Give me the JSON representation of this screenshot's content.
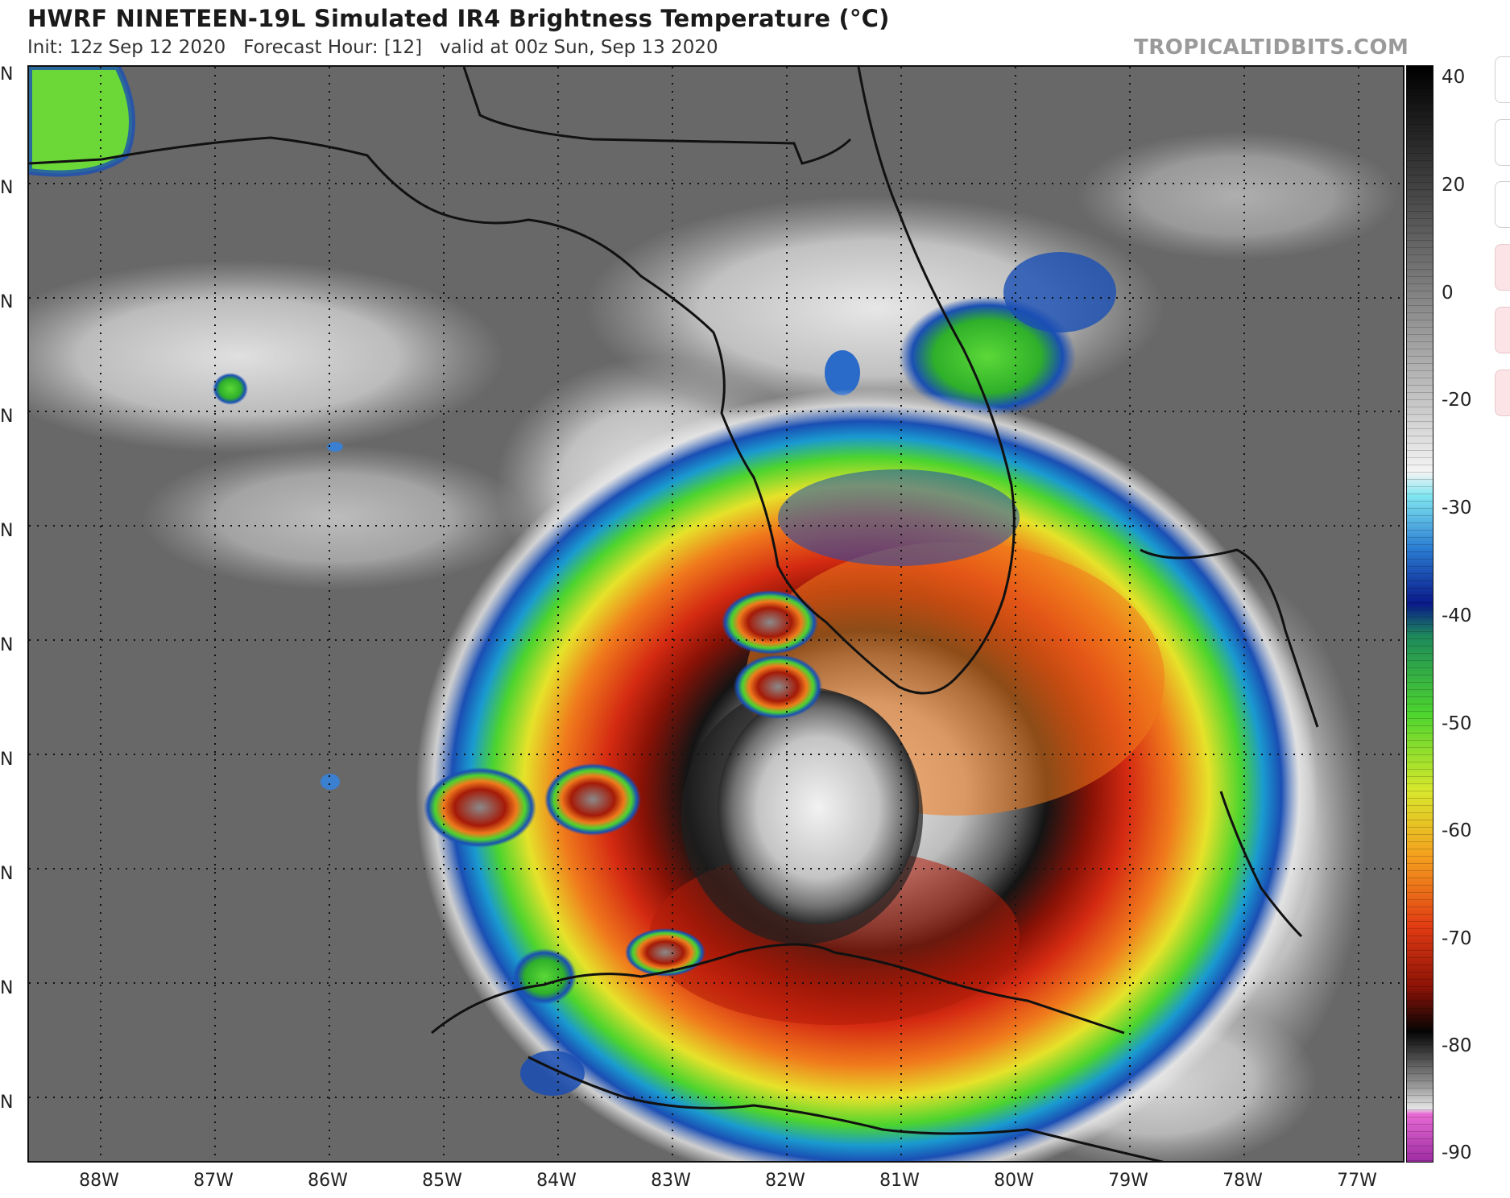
{
  "header": {
    "title": "HWRF NINETEEN-19L Simulated IR4 Brightness Temperature (°C)",
    "subtitle": "Init: 12z Sep 12 2020   Forecast Hour: [12]   valid at 00z Sun, Sep 13 2020",
    "credit": "TROPICALTIDBITS.COM"
  },
  "map": {
    "lon_labels": [
      "88W",
      "87W",
      "86W",
      "85W",
      "84W",
      "83W",
      "82W",
      "81W",
      "80W",
      "79W",
      "78W",
      "77W"
    ],
    "lat_labels": [
      "N",
      "N",
      "N",
      "N",
      "N",
      "N",
      "N",
      "N",
      "N",
      "N"
    ],
    "colors": {
      "cloud_top_cold": "#111111",
      "ring_red": "#d42a12",
      "ring_orange": "#f07a1c",
      "ring_yellow": "#e6e22a",
      "ring_green": "#4cd42e",
      "ring_blue": "#1a4fb4",
      "clear_gray": "#6b6b6b",
      "cirrus_white": "#f2f2f2"
    }
  },
  "colorbar": {
    "labels": [
      "40",
      "20",
      "0",
      "-20",
      "-30",
      "-40",
      "-50",
      "-60",
      "-70",
      "-80",
      "-90"
    ],
    "units": "°C"
  },
  "side_buttons": {
    "count": 6
  }
}
